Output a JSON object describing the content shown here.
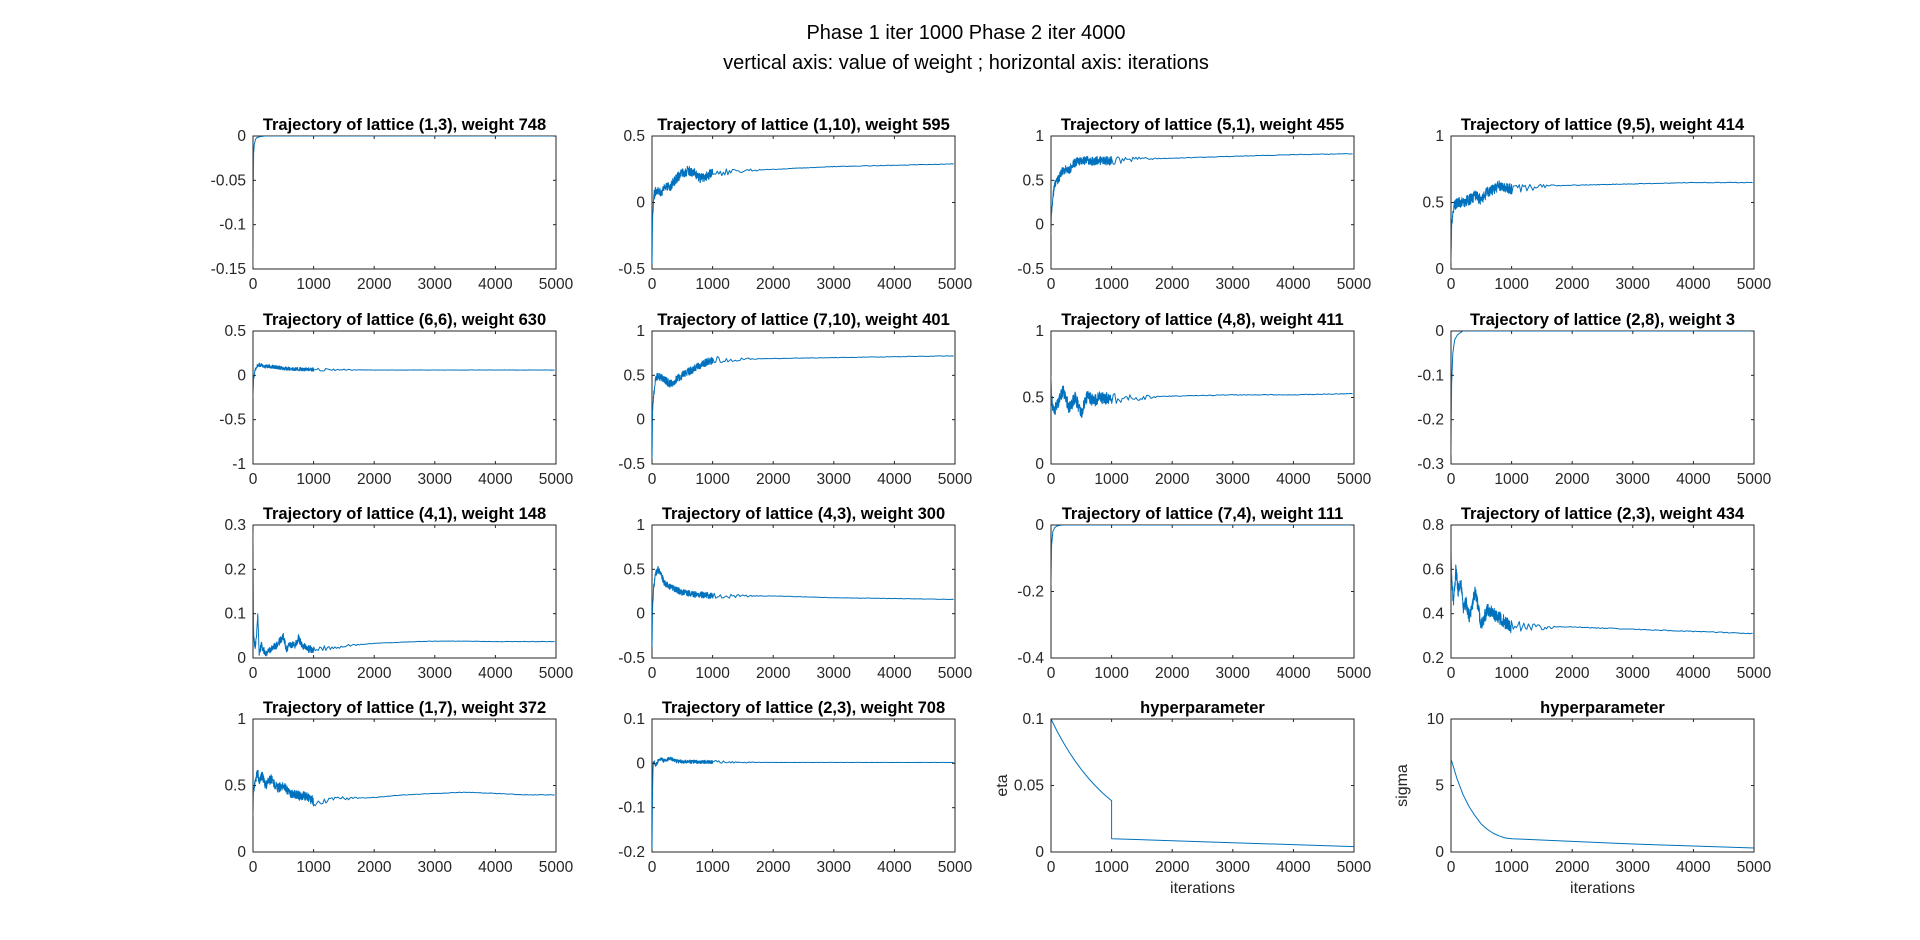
{
  "figure": {
    "title_line1": "Phase 1 iter 1000 Phase 2 iter 4000",
    "title_line2": "vertical axis: value of weight ; horizontal axis: iterations"
  },
  "colors": {
    "line": "#0072BD",
    "axes": "#262626"
  },
  "chart_data": [
    {
      "type": "line",
      "title": "Trajectory of lattice (1,3), weight 748",
      "xlabel": "",
      "ylabel": "",
      "xlim": [
        0,
        5000
      ],
      "ylim": [
        -0.15,
        0
      ],
      "xticks": [
        0,
        1000,
        2000,
        3000,
        4000,
        5000
      ],
      "yticks": [
        -0.15,
        -0.1,
        -0.05,
        0
      ],
      "yticklabels": [
        "-0.15",
        "-0.1",
        "-0.05",
        "0"
      ],
      "x": [
        0,
        5,
        10,
        20,
        40,
        60,
        100,
        200,
        5000
      ],
      "y": [
        -0.15,
        -0.06,
        -0.02,
        -0.01,
        -0.004,
        -0.002,
        -0.001,
        0,
        0
      ],
      "noise": 0
    },
    {
      "type": "line",
      "title": "Trajectory of lattice (1,10), weight 595",
      "xlabel": "",
      "ylabel": "",
      "xlim": [
        0,
        5000
      ],
      "ylim": [
        -0.5,
        0.5
      ],
      "xticks": [
        0,
        1000,
        2000,
        3000,
        4000,
        5000
      ],
      "yticks": [
        -0.5,
        0,
        0.5
      ],
      "yticklabels": [
        "-0.5",
        "0",
        "0.5"
      ],
      "x": [
        0,
        10,
        30,
        60,
        100,
        150,
        200,
        300,
        400,
        500,
        600,
        700,
        800,
        1000,
        1500,
        2000,
        3000,
        4000,
        5000
      ],
      "y": [
        -0.45,
        -0.1,
        0.05,
        0.08,
        0.1,
        0.07,
        0.12,
        0.12,
        0.18,
        0.22,
        0.24,
        0.22,
        0.18,
        0.22,
        0.24,
        0.25,
        0.27,
        0.28,
        0.29
      ],
      "noise": 0.035
    },
    {
      "type": "line",
      "title": "Trajectory of lattice (5,1), weight 455",
      "xlabel": "",
      "ylabel": "",
      "xlim": [
        0,
        5000
      ],
      "ylim": [
        -0.5,
        1
      ],
      "xticks": [
        0,
        1000,
        2000,
        3000,
        4000,
        5000
      ],
      "yticks": [
        -0.5,
        0,
        0.5,
        1
      ],
      "yticklabels": [
        "-0.5",
        "0",
        "0.5",
        "1"
      ],
      "x": [
        0,
        10,
        30,
        60,
        100,
        150,
        200,
        300,
        400,
        500,
        700,
        1000,
        1500,
        2000,
        3000,
        4000,
        5000
      ],
      "y": [
        -0.1,
        0.15,
        0.3,
        0.45,
        0.5,
        0.55,
        0.62,
        0.62,
        0.7,
        0.72,
        0.72,
        0.72,
        0.74,
        0.75,
        0.77,
        0.79,
        0.8
      ],
      "noise": 0.05
    },
    {
      "type": "line",
      "title": "Trajectory of lattice (9,5), weight 414",
      "xlabel": "",
      "ylabel": "",
      "xlim": [
        0,
        5000
      ],
      "ylim": [
        0,
        1
      ],
      "xticks": [
        0,
        1000,
        2000,
        3000,
        4000,
        5000
      ],
      "yticks": [
        0,
        0.5,
        1
      ],
      "yticklabels": [
        "0",
        "0.5",
        "1"
      ],
      "x": [
        0,
        10,
        30,
        60,
        100,
        200,
        300,
        400,
        500,
        600,
        700,
        800,
        1000,
        1500,
        2000,
        3000,
        4000,
        5000
      ],
      "y": [
        0.05,
        0.3,
        0.42,
        0.48,
        0.5,
        0.5,
        0.52,
        0.55,
        0.52,
        0.58,
        0.6,
        0.63,
        0.6,
        0.62,
        0.63,
        0.64,
        0.65,
        0.65
      ],
      "noise": 0.04
    },
    {
      "type": "line",
      "title": "Trajectory of lattice (6,6), weight 630",
      "xlabel": "",
      "ylabel": "",
      "xlim": [
        0,
        5000
      ],
      "ylim": [
        -1,
        0.5
      ],
      "xticks": [
        0,
        1000,
        2000,
        3000,
        4000,
        5000
      ],
      "yticks": [
        -1,
        -0.5,
        0,
        0.5
      ],
      "yticklabels": [
        "-1",
        "-0.5",
        "0",
        "0.5"
      ],
      "x": [
        0,
        10,
        30,
        60,
        100,
        200,
        300,
        400,
        500,
        700,
        1000,
        2000,
        3000,
        5000
      ],
      "y": [
        -0.25,
        -0.05,
        0.05,
        0.1,
        0.12,
        0.1,
        0.1,
        0.09,
        0.08,
        0.07,
        0.065,
        0.06,
        0.06,
        0.06
      ],
      "noise": 0.02
    },
    {
      "type": "line",
      "title": "Trajectory of lattice (7,10), weight 401",
      "xlabel": "",
      "ylabel": "",
      "xlim": [
        0,
        5000
      ],
      "ylim": [
        -0.5,
        1
      ],
      "xticks": [
        0,
        1000,
        2000,
        3000,
        4000,
        5000
      ],
      "yticks": [
        -0.5,
        0,
        0.5,
        1
      ],
      "yticklabels": [
        "-0.5",
        "0",
        "0.5",
        "1"
      ],
      "x": [
        0,
        10,
        30,
        60,
        100,
        200,
        300,
        400,
        500,
        700,
        900,
        1000,
        1500,
        2000,
        3000,
        4000,
        5000
      ],
      "y": [
        -0.45,
        0.1,
        0.3,
        0.45,
        0.5,
        0.45,
        0.4,
        0.45,
        0.5,
        0.58,
        0.65,
        0.67,
        0.68,
        0.69,
        0.7,
        0.71,
        0.72
      ],
      "noise": 0.045
    },
    {
      "type": "line",
      "title": "Trajectory of lattice (4,8), weight 411",
      "xlabel": "",
      "ylabel": "",
      "xlim": [
        0,
        5000
      ],
      "ylim": [
        0,
        1
      ],
      "xticks": [
        0,
        1000,
        2000,
        3000,
        4000,
        5000
      ],
      "yticks": [
        0,
        0.5,
        1
      ],
      "yticklabels": [
        "0",
        "0.5",
        "1"
      ],
      "x": [
        0,
        10,
        30,
        60,
        100,
        200,
        300,
        400,
        500,
        600,
        700,
        800,
        1000,
        1500,
        2000,
        3000,
        4000,
        5000
      ],
      "y": [
        0.65,
        0.5,
        0.42,
        0.4,
        0.45,
        0.55,
        0.42,
        0.5,
        0.38,
        0.52,
        0.47,
        0.5,
        0.49,
        0.5,
        0.51,
        0.52,
        0.52,
        0.53
      ],
      "noise": 0.045
    },
    {
      "type": "line",
      "title": "Trajectory of lattice (2,8), weight 3",
      "xlabel": "",
      "ylabel": "",
      "xlim": [
        0,
        5000
      ],
      "ylim": [
        -0.3,
        0
      ],
      "xticks": [
        0,
        1000,
        2000,
        3000,
        4000,
        5000
      ],
      "yticks": [
        -0.3,
        -0.2,
        -0.1,
        0
      ],
      "yticklabels": [
        "-0.3",
        "-0.2",
        "-0.1",
        "0"
      ],
      "x": [
        0,
        10,
        30,
        60,
        100,
        150,
        200,
        5000
      ],
      "y": [
        -0.28,
        -0.12,
        -0.05,
        -0.02,
        -0.01,
        -0.004,
        0,
        0
      ],
      "noise": 0
    },
    {
      "type": "line",
      "title": "Trajectory of lattice (4,1), weight 148",
      "xlabel": "",
      "ylabel": "",
      "xlim": [
        0,
        5000
      ],
      "ylim": [
        0,
        0.3
      ],
      "xticks": [
        0,
        1000,
        2000,
        3000,
        4000,
        5000
      ],
      "yticks": [
        0,
        0.1,
        0.2,
        0.3
      ],
      "yticklabels": [
        "0",
        "0.1",
        "0.2",
        "0.3"
      ],
      "x": [
        0,
        10,
        40,
        80,
        100,
        140,
        200,
        300,
        400,
        500,
        550,
        600,
        700,
        750,
        800,
        900,
        1000,
        1500,
        2000,
        2500,
        3000,
        3500,
        4000,
        4500,
        5000
      ],
      "y": [
        0.28,
        0.05,
        0.02,
        0.1,
        0.01,
        0.03,
        0.01,
        0.02,
        0.03,
        0.05,
        0.02,
        0.03,
        0.03,
        0.045,
        0.03,
        0.02,
        0.02,
        0.027,
        0.033,
        0.036,
        0.038,
        0.038,
        0.037,
        0.037,
        0.037
      ],
      "noise": 0.008
    },
    {
      "type": "line",
      "title": "Trajectory of lattice (4,3), weight 300",
      "xlabel": "",
      "ylabel": "",
      "xlim": [
        0,
        5000
      ],
      "ylim": [
        -0.5,
        1
      ],
      "xticks": [
        0,
        1000,
        2000,
        3000,
        4000,
        5000
      ],
      "yticks": [
        -0.5,
        0,
        0.5,
        1
      ],
      "yticklabels": [
        "-0.5",
        "0",
        "0.5",
        "1"
      ],
      "x": [
        0,
        10,
        30,
        60,
        100,
        150,
        200,
        300,
        400,
        500,
        700,
        1000,
        2000,
        3000,
        4000,
        5000
      ],
      "y": [
        -0.4,
        0.1,
        0.3,
        0.45,
        0.5,
        0.45,
        0.35,
        0.3,
        0.27,
        0.24,
        0.22,
        0.2,
        0.2,
        0.18,
        0.17,
        0.16
      ],
      "noise": 0.035
    },
    {
      "type": "line",
      "title": "Trajectory of lattice (7,4), weight 111",
      "xlabel": "",
      "ylabel": "",
      "xlim": [
        0,
        5000
      ],
      "ylim": [
        -0.4,
        0
      ],
      "xticks": [
        0,
        1000,
        2000,
        3000,
        4000,
        5000
      ],
      "yticks": [
        -0.4,
        -0.2,
        0
      ],
      "yticklabels": [
        "-0.4",
        "-0.2",
        "0"
      ],
      "x": [
        0,
        10,
        30,
        60,
        100,
        150,
        200,
        5000
      ],
      "y": [
        -0.18,
        -0.06,
        -0.02,
        -0.008,
        -0.003,
        -0.001,
        0,
        0
      ],
      "noise": 0
    },
    {
      "type": "line",
      "title": "Trajectory of lattice (2,3), weight 434",
      "xlabel": "",
      "ylabel": "",
      "xlim": [
        0,
        5000
      ],
      "ylim": [
        0.2,
        0.8
      ],
      "xticks": [
        0,
        1000,
        2000,
        3000,
        4000,
        5000
      ],
      "yticks": [
        0.2,
        0.4,
        0.6,
        0.8
      ],
      "yticklabels": [
        "0.2",
        "0.4",
        "0.6",
        "0.8"
      ],
      "x": [
        0,
        10,
        40,
        80,
        120,
        160,
        200,
        250,
        300,
        400,
        500,
        600,
        700,
        800,
        900,
        1000,
        1500,
        2000,
        3000,
        4000,
        5000
      ],
      "y": [
        0.7,
        0.55,
        0.45,
        0.6,
        0.5,
        0.55,
        0.42,
        0.45,
        0.38,
        0.5,
        0.35,
        0.42,
        0.4,
        0.38,
        0.36,
        0.34,
        0.34,
        0.34,
        0.33,
        0.32,
        0.31
      ],
      "noise": 0.03
    },
    {
      "type": "line",
      "title": "Trajectory of lattice (1,7), weight 372",
      "xlabel": "",
      "ylabel": "",
      "xlim": [
        0,
        5000
      ],
      "ylim": [
        0,
        1
      ],
      "xticks": [
        0,
        1000,
        2000,
        3000,
        4000,
        5000
      ],
      "yticks": [
        0,
        0.5,
        1
      ],
      "yticklabels": [
        "0",
        "0.5",
        "1"
      ],
      "x": [
        0,
        10,
        40,
        80,
        100,
        150,
        200,
        300,
        400,
        500,
        600,
        700,
        800,
        900,
        1000,
        1500,
        2000,
        2500,
        3000,
        3500,
        4000,
        4500,
        5000
      ],
      "y": [
        0.3,
        0.45,
        0.55,
        0.6,
        0.52,
        0.58,
        0.5,
        0.55,
        0.48,
        0.5,
        0.45,
        0.43,
        0.42,
        0.42,
        0.38,
        0.4,
        0.41,
        0.43,
        0.44,
        0.45,
        0.44,
        0.43,
        0.43
      ],
      "noise": 0.035
    },
    {
      "type": "line",
      "title": "Trajectory of lattice (2,3), weight 708",
      "xlabel": "",
      "ylabel": "",
      "xlim": [
        0,
        5000
      ],
      "ylim": [
        -0.2,
        0.1
      ],
      "xticks": [
        0,
        1000,
        2000,
        3000,
        4000,
        5000
      ],
      "yticks": [
        -0.2,
        -0.1,
        0,
        0.1
      ],
      "yticklabels": [
        "-0.2",
        "-0.1",
        "0",
        "0.1"
      ],
      "x": [
        0,
        10,
        20,
        40,
        60,
        100,
        150,
        200,
        300,
        400,
        500,
        1000,
        2000,
        3000,
        4000,
        5000
      ],
      "y": [
        -0.19,
        -0.05,
        0,
        0.003,
        -0.005,
        0.005,
        0.01,
        0.005,
        0.012,
        0.005,
        0.004,
        0.003,
        0.002,
        0.002,
        0.002,
        0.002
      ],
      "noise": 0.004
    },
    {
      "type": "line",
      "title": "hyperparameter",
      "xlabel": "iterations",
      "ylabel": "eta",
      "xlim": [
        0,
        5000
      ],
      "ylim": [
        0,
        0.1
      ],
      "xticks": [
        0,
        1000,
        2000,
        3000,
        4000,
        5000
      ],
      "yticks": [
        0,
        0.05,
        0.1
      ],
      "yticklabels": [
        "0",
        "0.05",
        "0.1"
      ],
      "x": [
        0,
        100,
        200,
        300,
        400,
        500,
        600,
        700,
        800,
        900,
        1000,
        1000,
        2000,
        3000,
        4000,
        5000
      ],
      "y": [
        0.1,
        0.0909,
        0.0826,
        0.0751,
        0.0683,
        0.0621,
        0.0564,
        0.0513,
        0.0466,
        0.0424,
        0.0385,
        0.01,
        0.0085,
        0.007,
        0.0055,
        0.004
      ],
      "noise": 0
    },
    {
      "type": "line",
      "title": "hyperparameter",
      "xlabel": "iterations",
      "ylabel": "sigma",
      "xlim": [
        0,
        5000
      ],
      "ylim": [
        0,
        10
      ],
      "xticks": [
        0,
        1000,
        2000,
        3000,
        4000,
        5000
      ],
      "yticks": [
        0,
        5,
        10
      ],
      "yticklabels": [
        "0",
        "5",
        "10"
      ],
      "x": [
        0,
        100,
        200,
        300,
        400,
        500,
        600,
        700,
        800,
        900,
        1000,
        2000,
        3000,
        4000,
        5000
      ],
      "y": [
        7,
        5.5,
        4.3,
        3.4,
        2.7,
        2.1,
        1.7,
        1.4,
        1.2,
        1.05,
        1.0,
        0.8,
        0.6,
        0.45,
        0.3
      ],
      "noise": 0
    }
  ]
}
